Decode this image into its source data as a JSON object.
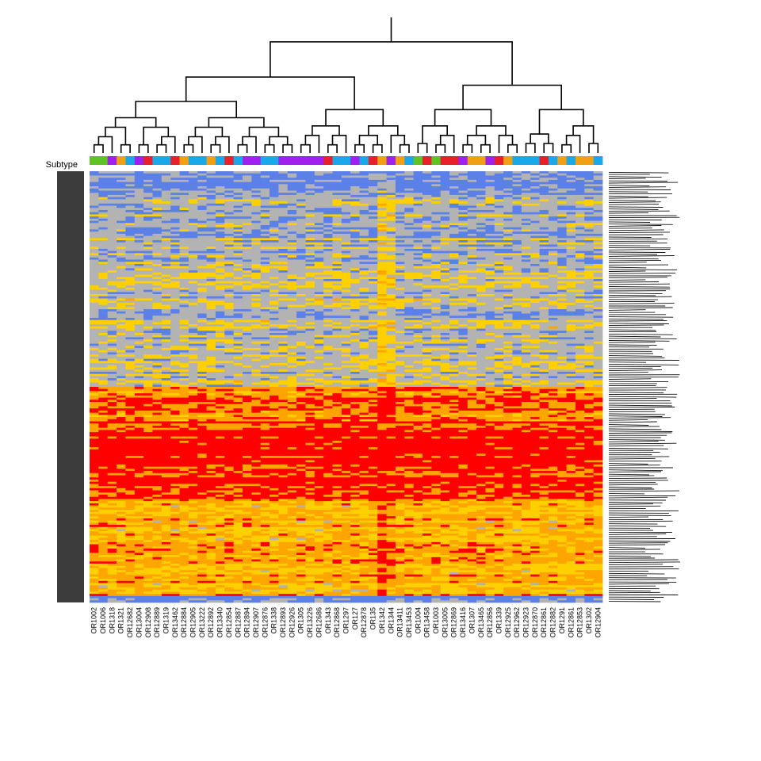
{
  "chart_data": {
    "type": "heatmap",
    "title": "",
    "xlabel": "",
    "ylabel": "",
    "row_annotation_label": "Subtype",
    "columns": [
      "OR1002",
      "OR1006",
      "OR1318",
      "OR1321",
      "OR12682",
      "OR13004",
      "OR12908",
      "OR12889",
      "OR1319",
      "OR13462",
      "OR12884",
      "OR12905",
      "OR13222",
      "OR12892",
      "OR13340",
      "OR12854",
      "OR12887",
      "OR12894",
      "OR12907",
      "OR12876",
      "OR1338",
      "OR12893",
      "OR12926",
      "OR1305",
      "OR13226",
      "OR12686",
      "OR1343",
      "OR12868",
      "OR1297",
      "OR127",
      "OR12878",
      "OR135",
      "OR1342",
      "OR1344",
      "OR13411",
      "OR13453",
      "OR1004",
      "OR13458",
      "OR1003",
      "OR13005",
      "OR12869",
      "OR13416",
      "OR1307",
      "OR13465",
      "OR12856",
      "OR1339",
      "OR12925",
      "OR12962",
      "OR12923",
      "OR12870",
      "OR12861",
      "OR12882",
      "OR1291",
      "OR12861",
      "OR12853",
      "OR1302",
      "OR12904"
    ],
    "column_subtypes": [
      "green",
      "green",
      "purple",
      "orange",
      "sky",
      "purple",
      "red",
      "sky",
      "sky",
      "red",
      "orange",
      "sky",
      "sky",
      "orange",
      "sky",
      "red",
      "sky",
      "purple",
      "purple",
      "sky",
      "sky",
      "purple",
      "purple",
      "purple",
      "purple",
      "purple",
      "red",
      "sky",
      "sky",
      "purple",
      "sky",
      "red",
      "orange",
      "purple",
      "orange",
      "sky",
      "green",
      "red",
      "green",
      "red",
      "red",
      "purple",
      "orange",
      "orange",
      "purple",
      "red",
      "orange",
      "sky",
      "sky",
      "sky",
      "red",
      "sky",
      "orange",
      "sky",
      "orange",
      "orange",
      "sky"
    ],
    "colors": {
      "subtypes": {
        "green": "#5fc323",
        "purple": "#a020f0",
        "orange": "#f0a010",
        "sky": "#19a9ea",
        "red": "#e8202a"
      },
      "scale": [
        "#5b80e8",
        "#b3b3b3",
        "#ffd000",
        "#ffa500",
        "#ff0000"
      ],
      "row_annotation": "#3c3c3c",
      "dendrogram": "#000000"
    },
    "row_count": 200,
    "row_bands": [
      {
        "start": 0.0,
        "end": 0.055,
        "level": 0.25
      },
      {
        "start": 0.055,
        "end": 0.23,
        "level": 0.8
      },
      {
        "start": 0.23,
        "end": 0.5,
        "level": 1.2
      },
      {
        "start": 0.5,
        "end": 0.58,
        "level": 3.4
      },
      {
        "start": 0.58,
        "end": 0.76,
        "level": 3.85
      },
      {
        "start": 0.76,
        "end": 0.985,
        "level": 2.7
      },
      {
        "start": 0.985,
        "end": 1.0,
        "level": 0.1
      }
    ],
    "column_boosts": [
      {
        "column": "OR1342",
        "delta": 1.0
      },
      {
        "column": "OR1344",
        "delta": 0.6
      }
    ],
    "legend": "none"
  }
}
